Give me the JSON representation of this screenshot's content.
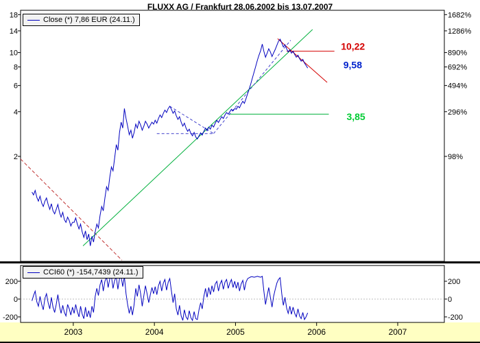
{
  "title": "FLUXX AG / Frankfurt 28.06.2002 bis 13.07.2007",
  "legend": {
    "close": "Close (*) 7,86 EUR (24.11.)",
    "cci": "CCI60 (*) -154,7439 (24.11.)"
  },
  "colors": {
    "price_line": "#0000bf",
    "cci_line": "#0000bf",
    "strip_background": "#ffffc2",
    "axis": "#000000"
  },
  "chart_data": [
    {
      "type": "line",
      "panel": "price",
      "title": "FLUXX AG / Frankfurt 28.06.2002 bis 13.07.2007",
      "scale": "logarithmic",
      "x_range": [
        2002.35,
        2007.575
      ],
      "y_log_range": [
        0.393,
        19.25
      ],
      "yticks": [
        {
          "price": 18,
          "label": "18",
          "percent": "1682%"
        },
        {
          "price": 14,
          "label": "14",
          "percent": "1286%"
        },
        {
          "price": 10,
          "label": "10",
          "percent": "890%"
        },
        {
          "price": 8,
          "label": "8",
          "percent": "692%"
        },
        {
          "price": 6,
          "label": "6",
          "percent": "494%"
        },
        {
          "price": 4,
          "label": "4",
          "percent": "296%"
        },
        {
          "price": 2,
          "label": "2",
          "percent": "98%"
        }
      ],
      "xticks": [
        {
          "year": 2003,
          "label": "2003"
        },
        {
          "year": 2004,
          "label": "2004"
        },
        {
          "year": 2005,
          "label": "2005"
        },
        {
          "year": 2006,
          "label": "2006"
        },
        {
          "year": 2007,
          "label": "2007"
        }
      ],
      "series": {
        "name": "Close",
        "unit": "EUR",
        "last_value": 7.86,
        "last_date_label": "24.11.",
        "x_start": 2002.49,
        "x_step": 0.02,
        "values": [
          1.15,
          1.1,
          1.18,
          1.06,
          1.0,
          1.08,
          0.97,
          0.92,
          1.0,
          1.05,
          0.95,
          0.88,
          0.96,
          0.86,
          0.82,
          0.88,
          0.95,
          0.84,
          0.78,
          0.84,
          0.75,
          0.72,
          0.78,
          0.74,
          0.68,
          0.72,
          0.72,
          0.77,
          0.7,
          0.65,
          0.7,
          0.62,
          0.57,
          0.63,
          0.55,
          0.6,
          0.5,
          0.58,
          0.53,
          0.62,
          0.7,
          0.66,
          0.8,
          0.92,
          0.86,
          1.05,
          1.25,
          1.18,
          1.45,
          1.7,
          1.6,
          1.95,
          2.4,
          2.2,
          2.9,
          3.4,
          3.1,
          4.2,
          3.6,
          3.2,
          2.8,
          3.0,
          2.65,
          2.9,
          3.3,
          3.1,
          3.45,
          3.25,
          3.0,
          3.2,
          3.45,
          3.3,
          3.1,
          3.25,
          3.4,
          3.3,
          3.5,
          3.35,
          3.6,
          3.8,
          3.65,
          3.9,
          4.1,
          3.95,
          4.2,
          4.35,
          4.15,
          3.9,
          4.05,
          3.75,
          3.55,
          3.7,
          3.4,
          3.2,
          3.35,
          3.1,
          2.95,
          3.05,
          2.85,
          2.75,
          2.9,
          2.7,
          2.62,
          2.75,
          2.88,
          2.78,
          2.95,
          3.1,
          2.98,
          3.15,
          3.05,
          3.25,
          3.15,
          3.35,
          3.5,
          3.38,
          3.55,
          3.7,
          3.6,
          3.8,
          3.95,
          3.85,
          4.0,
          4.15,
          4.05,
          4.2,
          4.15,
          4.35,
          4.25,
          4.5,
          4.7,
          4.55,
          4.9,
          5.3,
          5.7,
          6.2,
          6.8,
          7.4,
          8.1,
          8.9,
          9.6,
          10.3,
          11.4,
          10.2,
          9.3,
          9.9,
          10.6,
          10.1,
          9.4,
          9.95,
          10.5,
          11.2,
          11.9,
          12.3,
          11.6,
          10.9,
          11.3,
          10.6,
          10.1,
          10.45,
          9.9,
          10.2,
          9.7,
          9.3,
          9.6,
          9.1,
          8.75,
          9.0,
          8.5,
          8.2,
          7.86
        ]
      },
      "overlays": [
        {
          "name": "downtrend-2002",
          "color": "#c03333",
          "dash": "5,3",
          "width": 1,
          "points": [
            [
              2002.35,
              1.92
            ],
            [
              2003.6,
              0.4
            ]
          ]
        },
        {
          "name": "uptrend-main",
          "color": "#00b03c",
          "dash": "",
          "width": 1,
          "points": [
            [
              2003.12,
              0.5
            ],
            [
              2005.95,
              14.3
            ]
          ]
        },
        {
          "name": "support-level",
          "color": "#00b03c",
          "dash": "",
          "width": 1,
          "points": [
            [
              2004.92,
              3.85
            ],
            [
              2006.15,
              3.85
            ]
          ]
        },
        {
          "name": "resistance-level",
          "color": "#d40000",
          "dash": "",
          "width": 1,
          "points": [
            [
              2005.63,
              10.22
            ],
            [
              2006.22,
              10.22
            ]
          ]
        },
        {
          "name": "downtrend-2005",
          "color": "#d40000",
          "dash": "",
          "width": 1,
          "points": [
            [
              2005.52,
              12.4
            ],
            [
              2006.13,
              6.3
            ]
          ]
        },
        {
          "name": "pattern-top-decline",
          "color": "#4040cc",
          "dash": "4,3",
          "width": 1,
          "points": [
            [
              2004.19,
              4.35
            ],
            [
              2004.73,
              2.85
            ]
          ]
        },
        {
          "name": "pattern-horizontal",
          "color": "#4040cc",
          "dash": "4,3",
          "width": 1,
          "points": [
            [
              2004.03,
              2.85
            ],
            [
              2004.73,
              2.85
            ]
          ]
        },
        {
          "name": "pattern-rising",
          "color": "#4040cc",
          "dash": "4,3",
          "width": 1,
          "points": [
            [
              2004.73,
              2.85
            ],
            [
              2005.68,
              12.1
            ]
          ]
        }
      ],
      "annotations": [
        {
          "text": "10,22",
          "color": "#d40000",
          "t": 2006.3,
          "price": 10.9
        },
        {
          "text": "9,58",
          "color": "#0022cc",
          "t": 2006.33,
          "price": 8.2
        },
        {
          "text": "3,85",
          "color": "#00cc33",
          "t": 2006.37,
          "price": 3.66
        }
      ]
    },
    {
      "type": "line",
      "panel": "cci",
      "scale": "linear",
      "x_range": [
        2002.35,
        2007.575
      ],
      "y_range": [
        -262,
        377
      ],
      "yticks": [
        {
          "value": 200,
          "label": "200"
        },
        {
          "value": 0,
          "label": "0"
        },
        {
          "value": -200,
          "label": "-200"
        }
      ],
      "series": {
        "name": "CCI60",
        "last_value": -154.7439,
        "last_date_label": "24.11.",
        "x_start": 2002.49,
        "x_step": 0.02,
        "values": [
          -20,
          40,
          90,
          -30,
          -80,
          30,
          -60,
          -120,
          10,
          60,
          -40,
          -110,
          20,
          -90,
          -150,
          -60,
          50,
          -80,
          -160,
          -70,
          -150,
          -190,
          -60,
          -110,
          -180,
          -90,
          -160,
          -60,
          -140,
          -200,
          -80,
          -170,
          -220,
          -90,
          -200,
          -130,
          -210,
          -80,
          -150,
          30,
          120,
          40,
          160,
          220,
          90,
          200,
          250,
          130,
          230,
          255,
          120,
          210,
          250,
          110,
          230,
          250,
          140,
          255,
          60,
          -60,
          -160,
          -80,
          -180,
          -60,
          120,
          30,
          160,
          60,
          -80,
          40,
          150,
          60,
          -40,
          50,
          130,
          60,
          140,
          50,
          150,
          200,
          90,
          180,
          220,
          100,
          190,
          230,
          90,
          -40,
          60,
          -110,
          -180,
          -70,
          -190,
          -240,
          -120,
          -200,
          -230,
          -130,
          -210,
          -240,
          -140,
          -220,
          -230,
          -120,
          -40,
          -110,
          30,
          120,
          20,
          130,
          50,
          150,
          80,
          170,
          200,
          90,
          170,
          210,
          110,
          190,
          220,
          120,
          180,
          220,
          130,
          200,
          120,
          190,
          90,
          170,
          210,
          100,
          190,
          230,
          240,
          250,
          250,
          245,
          250,
          255,
          250,
          245,
          255,
          90,
          -60,
          40,
          130,
          20,
          -90,
          30,
          110,
          180,
          220,
          240,
          60,
          -70,
          20,
          -100,
          -160,
          -80,
          -170,
          -90,
          -160,
          -200,
          -110,
          -190,
          -220,
          -150,
          -230,
          -200,
          -155
        ]
      }
    }
  ]
}
